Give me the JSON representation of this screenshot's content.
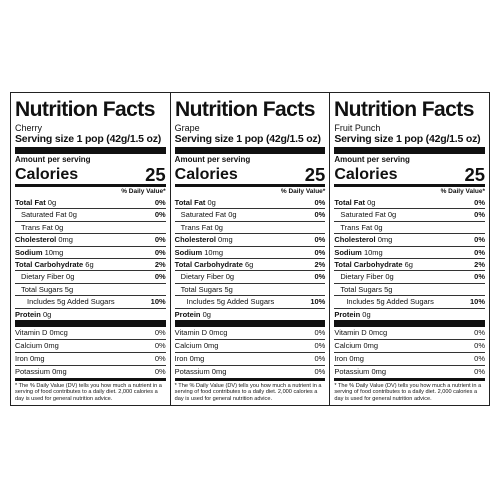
{
  "labels": [
    {
      "title": "Nutrition Facts",
      "flavor": "Cherry",
      "serving": "Serving size 1 pop (42g/1.5 oz)",
      "amount_per_serving": "Amount per serving",
      "calories_label": "Calories",
      "calories_value": "25",
      "dv_header": "% Daily Value*",
      "rows": [
        {
          "name": "Total Fat",
          "amount": "0g",
          "pct": "0%"
        },
        {
          "name": "Saturated Fat",
          "amount": "0g",
          "pct": "0%"
        },
        {
          "name": "Trans Fat",
          "amount": "0g",
          "pct": ""
        },
        {
          "name": "Cholesterol",
          "amount": "0mg",
          "pct": "0%"
        },
        {
          "name": "Sodium",
          "amount": "10mg",
          "pct": "0%"
        },
        {
          "name": "Total Carbohydrate",
          "amount": "6g",
          "pct": "2%"
        },
        {
          "name": "Dietary Fiber",
          "amount": "0g",
          "pct": "0%"
        },
        {
          "name": "Total Sugars",
          "amount": "5g",
          "pct": ""
        },
        {
          "name": "Includes 5g Added Sugars",
          "amount": "",
          "pct": "10%"
        },
        {
          "name": "Protein",
          "amount": "0g",
          "pct": ""
        }
      ],
      "vitamins": [
        {
          "name": "Vitamin D 0mcg",
          "pct": "0%"
        },
        {
          "name": "Calcium 0mg",
          "pct": "0%"
        },
        {
          "name": "Iron 0mg",
          "pct": "0%"
        },
        {
          "name": "Potassium 0mg",
          "pct": "0%"
        }
      ],
      "footnote": "* The % Daily Value (DV) tells you how much a nutrient in a serving of food contributes to a daily diet. 2,000 calories a day is used for general nutrition advice."
    },
    {
      "title": "Nutrition Facts",
      "flavor": "Grape",
      "serving": "Serving size 1 pop (42g/1.5 oz)",
      "amount_per_serving": "Amount per serving",
      "calories_label": "Calories",
      "calories_value": "25",
      "dv_header": "% Daily Value*",
      "rows": [
        {
          "name": "Total Fat",
          "amount": "0g",
          "pct": "0%"
        },
        {
          "name": "Saturated Fat",
          "amount": "0g",
          "pct": "0%"
        },
        {
          "name": "Trans Fat",
          "amount": "0g",
          "pct": ""
        },
        {
          "name": "Cholesterol",
          "amount": "0mg",
          "pct": "0%"
        },
        {
          "name": "Sodium",
          "amount": "10mg",
          "pct": "0%"
        },
        {
          "name": "Total Carbohydrate",
          "amount": "6g",
          "pct": "2%"
        },
        {
          "name": "Dietary Fiber",
          "amount": "0g",
          "pct": "0%"
        },
        {
          "name": "Total Sugars",
          "amount": "5g",
          "pct": ""
        },
        {
          "name": "Includes 5g Added Sugars",
          "amount": "",
          "pct": "10%"
        },
        {
          "name": "Protein",
          "amount": "0g",
          "pct": ""
        }
      ],
      "vitamins": [
        {
          "name": "Vitamin D 0mcg",
          "pct": "0%"
        },
        {
          "name": "Calcium 0mg",
          "pct": "0%"
        },
        {
          "name": "Iron 0mg",
          "pct": "0%"
        },
        {
          "name": "Potassium 0mg",
          "pct": "0%"
        }
      ],
      "footnote": "* The % Daily Value (DV) tells you how much a nutrient in a serving of food contributes to a daily diet. 2,000 calories a day is used for general nutrition advice."
    },
    {
      "title": "Nutrition Facts",
      "flavor": "Fruit Punch",
      "serving": "Serving size 1 pop (42g/1.5 oz)",
      "amount_per_serving": "Amount per serving",
      "calories_label": "Calories",
      "calories_value": "25",
      "dv_header": "% Daily Value*",
      "rows": [
        {
          "name": "Total Fat",
          "amount": "0g",
          "pct": "0%"
        },
        {
          "name": "Saturated Fat",
          "amount": "0g",
          "pct": "0%"
        },
        {
          "name": "Trans Fat",
          "amount": "0g",
          "pct": ""
        },
        {
          "name": "Cholesterol",
          "amount": "0mg",
          "pct": "0%"
        },
        {
          "name": "Sodium",
          "amount": "10mg",
          "pct": "0%"
        },
        {
          "name": "Total Carbohydrate",
          "amount": "6g",
          "pct": "2%"
        },
        {
          "name": "Dietary Fiber",
          "amount": "0g",
          "pct": "0%"
        },
        {
          "name": "Total Sugars",
          "amount": "5g",
          "pct": ""
        },
        {
          "name": "Includes 5g Added Sugars",
          "amount": "",
          "pct": "10%"
        },
        {
          "name": "Protein",
          "amount": "0g",
          "pct": ""
        }
      ],
      "vitamins": [
        {
          "name": "Vitamin D 0mcg",
          "pct": "0%"
        },
        {
          "name": "Calcium 0mg",
          "pct": "0%"
        },
        {
          "name": "Iron 0mg",
          "pct": "0%"
        },
        {
          "name": "Potassium 0mg",
          "pct": "0%"
        }
      ],
      "footnote": "* The % Daily Value (DV) tells you how much a nutrient in a serving of food contributes to a daily diet. 2,000 calories a day is used for general nutrition advice."
    }
  ]
}
